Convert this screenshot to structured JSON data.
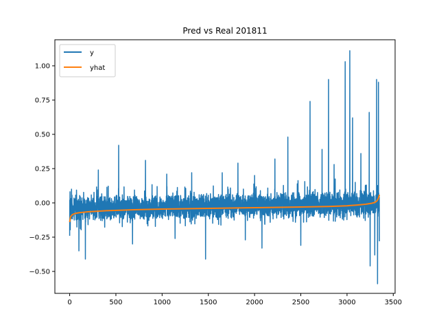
{
  "chart_data": {
    "type": "line",
    "title": "Pred vs Real 201811",
    "xlabel": "",
    "ylabel": "",
    "xlim": [
      -160,
      3520
    ],
    "ylim": [
      -0.66,
      1.19
    ],
    "x_ticks": [
      0,
      500,
      1000,
      1500,
      2000,
      2500,
      3000,
      3500
    ],
    "x_tick_labels": [
      "0",
      "500",
      "1000",
      "1500",
      "2000",
      "2500",
      "3000",
      "3500"
    ],
    "y_ticks": [
      -0.5,
      -0.25,
      0.0,
      0.25,
      0.5,
      0.75,
      1.0
    ],
    "y_tick_labels": [
      "−0.50",
      "−0.25",
      "0.00",
      "0.25",
      "0.50",
      "0.75",
      "1.00"
    ],
    "grid": false,
    "legend_position": "upper-left",
    "series": [
      {
        "name": "y",
        "color": "#1f77b4",
        "kind": "noisy",
        "n_points": 3350,
        "baseline": -0.04,
        "typical_range": [
          -0.2,
          0.12
        ],
        "spikes": [
          {
            "x": 0,
            "y": -0.24
          },
          {
            "x": 20,
            "y": 0.1
          },
          {
            "x": 100,
            "y": -0.35
          },
          {
            "x": 170,
            "y": -0.41
          },
          {
            "x": 310,
            "y": 0.24
          },
          {
            "x": 530,
            "y": 0.42
          },
          {
            "x": 680,
            "y": -0.3
          },
          {
            "x": 820,
            "y": 0.31
          },
          {
            "x": 1050,
            "y": 0.21
          },
          {
            "x": 1140,
            "y": -0.26
          },
          {
            "x": 1320,
            "y": 0.22
          },
          {
            "x": 1470,
            "y": -0.41
          },
          {
            "x": 1650,
            "y": 0.22
          },
          {
            "x": 1820,
            "y": 0.29
          },
          {
            "x": 1900,
            "y": -0.27
          },
          {
            "x": 2000,
            "y": 0.2
          },
          {
            "x": 2080,
            "y": -0.33
          },
          {
            "x": 2220,
            "y": 0.32
          },
          {
            "x": 2360,
            "y": 0.48
          },
          {
            "x": 2500,
            "y": -0.31
          },
          {
            "x": 2600,
            "y": 0.74
          },
          {
            "x": 2730,
            "y": 0.39
          },
          {
            "x": 2800,
            "y": 0.9
          },
          {
            "x": 2860,
            "y": 0.28
          },
          {
            "x": 2980,
            "y": 1.03
          },
          {
            "x": 3030,
            "y": 1.11
          },
          {
            "x": 3060,
            "y": 0.62
          },
          {
            "x": 3150,
            "y": 0.36
          },
          {
            "x": 3240,
            "y": 0.66
          },
          {
            "x": 3250,
            "y": -0.46
          },
          {
            "x": 3300,
            "y": -0.38
          },
          {
            "x": 3320,
            "y": 0.9
          },
          {
            "x": 3330,
            "y": -0.59
          },
          {
            "x": 3340,
            "y": 0.88
          },
          {
            "x": 3350,
            "y": -0.28
          }
        ]
      },
      {
        "name": "yhat",
        "color": "#ff7f0e",
        "kind": "line",
        "x": [
          0,
          10,
          30,
          60,
          100,
          200,
          400,
          700,
          1000,
          1500,
          2000,
          2500,
          2800,
          3000,
          3100,
          3200,
          3260,
          3300,
          3320,
          3335,
          3345,
          3350
        ],
        "y": [
          -0.14,
          -0.1,
          -0.085,
          -0.077,
          -0.072,
          -0.065,
          -0.057,
          -0.05,
          -0.045,
          -0.04,
          -0.035,
          -0.03,
          -0.026,
          -0.021,
          -0.016,
          -0.01,
          -0.004,
          0.003,
          0.012,
          0.027,
          0.045,
          0.06
        ]
      }
    ]
  }
}
